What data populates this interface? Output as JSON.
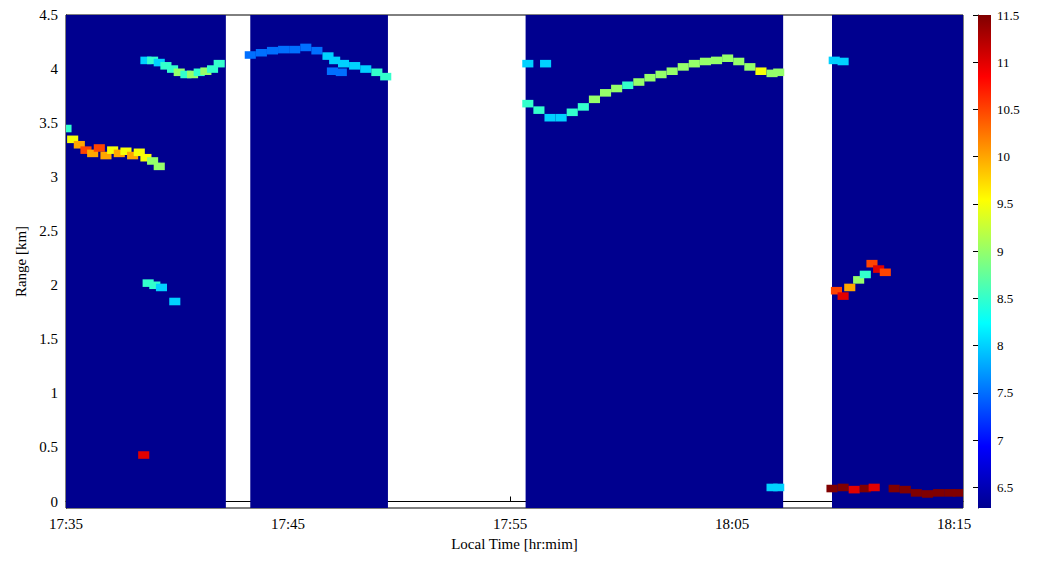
{
  "chart_data": {
    "type": "heatmap",
    "xlabel": "Local Time [hr:mim]",
    "ylabel": "Range [km]",
    "xlim": [
      1055,
      1095.4
    ],
    "xticks": [
      {
        "value": 1055,
        "label": "17:35"
      },
      {
        "value": 1065,
        "label": "17:45"
      },
      {
        "value": 1075,
        "label": "17:55"
      },
      {
        "value": 1085,
        "label": "18:05"
      },
      {
        "value": 1095,
        "label": "18:15"
      }
    ],
    "ylim": [
      -0.06,
      4.5
    ],
    "yticks": [
      0,
      0.5,
      1,
      1.5,
      2,
      2.5,
      3,
      3.5,
      4,
      4.5
    ],
    "colorbar": {
      "range": [
        6.28,
        11.5
      ],
      "ticks": [
        6.5,
        7,
        7.5,
        8,
        8.5,
        9,
        9.5,
        10,
        10.5,
        11,
        11.5
      ]
    },
    "background_cells": [
      [
        1055,
        1062.2,
        -0.06,
        4.5,
        6.28
      ],
      [
        1063.3,
        1069.5,
        -0.06,
        4.5,
        6.28
      ],
      [
        1075.7,
        1087.3,
        -0.06,
        4.5,
        6.28
      ],
      [
        1089.5,
        1095.4,
        -0.06,
        4.5,
        6.28
      ]
    ],
    "cells": [
      [
        1055.0,
        3.45,
        8.5
      ],
      [
        1055.3,
        3.35,
        9.5
      ],
      [
        1055.6,
        3.3,
        10
      ],
      [
        1055.9,
        3.25,
        10.5
      ],
      [
        1056.2,
        3.22,
        10
      ],
      [
        1056.5,
        3.27,
        10.5
      ],
      [
        1056.8,
        3.2,
        10
      ],
      [
        1057.1,
        3.25,
        9.5
      ],
      [
        1057.4,
        3.22,
        10
      ],
      [
        1057.7,
        3.24,
        9.5
      ],
      [
        1058.0,
        3.2,
        10
      ],
      [
        1058.3,
        3.23,
        9.5
      ],
      [
        1058.6,
        3.18,
        9.5
      ],
      [
        1058.9,
        3.15,
        9
      ],
      [
        1059.2,
        3.1,
        9
      ],
      [
        1058.6,
        4.08,
        8
      ],
      [
        1058.9,
        4.08,
        8.5
      ],
      [
        1059.2,
        4.06,
        8
      ],
      [
        1059.5,
        4.03,
        8.5
      ],
      [
        1059.8,
        4.0,
        8.5
      ],
      [
        1060.1,
        3.97,
        9
      ],
      [
        1060.4,
        3.95,
        8.5
      ],
      [
        1060.7,
        3.95,
        9
      ],
      [
        1061.0,
        3.97,
        8.5
      ],
      [
        1061.3,
        3.98,
        9
      ],
      [
        1061.6,
        4.0,
        8.5
      ],
      [
        1061.9,
        4.05,
        8.5
      ],
      [
        1058.7,
        2.02,
        8.5
      ],
      [
        1059.0,
        2.0,
        8.5
      ],
      [
        1059.3,
        1.98,
        8
      ],
      [
        1059.9,
        1.85,
        8
      ],
      [
        1058.5,
        0.43,
        11
      ],
      [
        1063.3,
        4.13,
        7.5
      ],
      [
        1063.8,
        4.15,
        7.5
      ],
      [
        1064.3,
        4.17,
        7.5
      ],
      [
        1064.8,
        4.18,
        7.5
      ],
      [
        1065.3,
        4.18,
        7.5
      ],
      [
        1065.8,
        4.2,
        7.5
      ],
      [
        1066.3,
        4.17,
        7.5
      ],
      [
        1066.8,
        4.12,
        8
      ],
      [
        1067.1,
        4.08,
        8
      ],
      [
        1067.0,
        3.98,
        7.5
      ],
      [
        1067.4,
        3.97,
        7.5
      ],
      [
        1067.5,
        4.05,
        8
      ],
      [
        1068.0,
        4.03,
        8
      ],
      [
        1068.5,
        4.0,
        8
      ],
      [
        1069.0,
        3.97,
        8.5
      ],
      [
        1069.4,
        3.93,
        8.5
      ],
      [
        1075.8,
        3.68,
        8.5
      ],
      [
        1076.3,
        3.62,
        8.5
      ],
      [
        1076.8,
        3.55,
        8
      ],
      [
        1077.3,
        3.55,
        8
      ],
      [
        1077.8,
        3.6,
        8.5
      ],
      [
        1078.3,
        3.65,
        8.5
      ],
      [
        1078.8,
        3.72,
        9
      ],
      [
        1079.3,
        3.78,
        9
      ],
      [
        1079.8,
        3.82,
        9
      ],
      [
        1080.3,
        3.85,
        8.5
      ],
      [
        1080.8,
        3.88,
        9
      ],
      [
        1081.3,
        3.92,
        9
      ],
      [
        1081.8,
        3.95,
        9
      ],
      [
        1082.3,
        3.98,
        9
      ],
      [
        1082.8,
        4.02,
        9
      ],
      [
        1083.3,
        4.05,
        9
      ],
      [
        1083.8,
        4.07,
        9
      ],
      [
        1084.3,
        4.08,
        9
      ],
      [
        1084.8,
        4.1,
        9
      ],
      [
        1085.3,
        4.07,
        9
      ],
      [
        1085.8,
        4.02,
        9
      ],
      [
        1086.3,
        3.98,
        9.5
      ],
      [
        1086.8,
        3.96,
        9
      ],
      [
        1087.1,
        3.97,
        9
      ],
      [
        1075.8,
        4.05,
        8
      ],
      [
        1076.6,
        4.05,
        8
      ],
      [
        1086.8,
        0.13,
        8
      ],
      [
        1087.1,
        0.13,
        8
      ],
      [
        1089.6,
        4.08,
        8
      ],
      [
        1090.0,
        4.07,
        8
      ],
      [
        1089.7,
        1.95,
        10.5
      ],
      [
        1090.0,
        1.9,
        11
      ],
      [
        1090.3,
        1.98,
        10
      ],
      [
        1090.7,
        2.05,
        9
      ],
      [
        1091.0,
        2.1,
        8.5
      ],
      [
        1091.3,
        2.2,
        10.5
      ],
      [
        1091.6,
        2.15,
        11
      ],
      [
        1091.9,
        2.12,
        10.5
      ],
      [
        1089.5,
        0.12,
        11.5
      ],
      [
        1090.0,
        0.13,
        11.5
      ],
      [
        1090.5,
        0.11,
        11
      ],
      [
        1091.0,
        0.12,
        11.5
      ],
      [
        1091.4,
        0.13,
        11
      ],
      [
        1092.3,
        0.12,
        11.5
      ],
      [
        1092.8,
        0.11,
        11.5
      ],
      [
        1093.3,
        0.08,
        11.5
      ],
      [
        1093.8,
        0.07,
        11.5
      ],
      [
        1094.3,
        0.08,
        11.5
      ],
      [
        1094.8,
        0.08,
        11.5
      ],
      [
        1095.2,
        0.08,
        11.5
      ]
    ]
  }
}
